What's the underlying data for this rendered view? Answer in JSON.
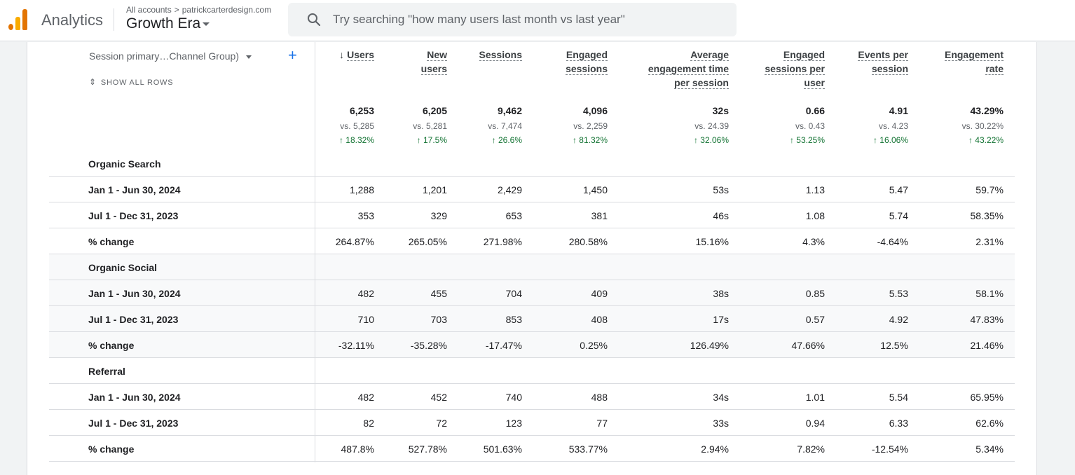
{
  "header": {
    "app_name": "Analytics",
    "breadcrumb_root": "All accounts",
    "breadcrumb_sep": ">",
    "account": "patrickcarterdesign.com",
    "property": "Growth Era",
    "search_placeholder": "Try searching \"how many users last month vs last year\""
  },
  "table": {
    "dimension_label": "Session primary…Channel Group)",
    "add_label": "+",
    "show_all_rows": "SHOW ALL ROWS",
    "sort_arrow": "↓",
    "columns": [
      {
        "lines": [
          "Users"
        ]
      },
      {
        "lines": [
          "New",
          "users"
        ]
      },
      {
        "lines": [
          "Sessions"
        ]
      },
      {
        "lines": [
          "Engaged",
          "sessions"
        ]
      },
      {
        "lines": [
          "Average",
          "engagement time",
          "per session"
        ]
      },
      {
        "lines": [
          "Engaged",
          "sessions per",
          "user"
        ]
      },
      {
        "lines": [
          "Events per",
          "session"
        ]
      },
      {
        "lines": [
          "Engagement",
          "rate"
        ]
      }
    ],
    "totals": [
      {
        "value": "6,253",
        "vs": "vs. 5,285",
        "change": "↑ 18.32%"
      },
      {
        "value": "6,205",
        "vs": "vs. 5,281",
        "change": "↑ 17.5%"
      },
      {
        "value": "9,462",
        "vs": "vs. 7,474",
        "change": "↑ 26.6%"
      },
      {
        "value": "4,096",
        "vs": "vs. 2,259",
        "change": "↑ 81.32%"
      },
      {
        "value": "32s",
        "vs": "vs. 24.39",
        "change": "↑ 32.06%"
      },
      {
        "value": "0.66",
        "vs": "vs. 0.43",
        "change": "↑ 53.25%"
      },
      {
        "value": "4.91",
        "vs": "vs. 4.23",
        "change": "↑ 16.06%"
      },
      {
        "value": "43.29%",
        "vs": "vs. 30.22%",
        "change": "↑ 43.22%"
      }
    ],
    "rows": [
      {
        "label": "Organic Search",
        "values": []
      },
      {
        "label": "Jan 1 - Jun 30, 2024",
        "values": [
          "1,288",
          "1,201",
          "2,429",
          "1,450",
          "53s",
          "1.13",
          "5.47",
          "59.7%"
        ]
      },
      {
        "label": "Jul 1 - Dec 31, 2023",
        "values": [
          "353",
          "329",
          "653",
          "381",
          "46s",
          "1.08",
          "5.74",
          "58.35%"
        ]
      },
      {
        "label": "% change",
        "values": [
          "264.87%",
          "265.05%",
          "271.98%",
          "280.58%",
          "15.16%",
          "4.3%",
          "-4.64%",
          "2.31%"
        ]
      },
      {
        "label": "Organic Social",
        "values": []
      },
      {
        "label": "Jan 1 - Jun 30, 2024",
        "values": [
          "482",
          "455",
          "704",
          "409",
          "38s",
          "0.85",
          "5.53",
          "58.1%"
        ]
      },
      {
        "label": "Jul 1 - Dec 31, 2023",
        "values": [
          "710",
          "703",
          "853",
          "408",
          "17s",
          "0.57",
          "4.92",
          "47.83%"
        ]
      },
      {
        "label": "% change",
        "values": [
          "-32.11%",
          "-35.28%",
          "-17.47%",
          "0.25%",
          "126.49%",
          "47.66%",
          "12.5%",
          "21.46%"
        ]
      },
      {
        "label": "Referral",
        "values": []
      },
      {
        "label": "Jan 1 - Jun 30, 2024",
        "values": [
          "482",
          "452",
          "740",
          "488",
          "34s",
          "1.01",
          "5.54",
          "65.95%"
        ]
      },
      {
        "label": "Jul 1 - Dec 31, 2023",
        "values": [
          "82",
          "72",
          "123",
          "77",
          "33s",
          "0.94",
          "6.33",
          "62.6%"
        ]
      },
      {
        "label": "% change",
        "values": [
          "487.8%",
          "527.78%",
          "501.63%",
          "533.77%",
          "2.94%",
          "7.82%",
          "-12.54%",
          "5.34%"
        ]
      }
    ]
  }
}
